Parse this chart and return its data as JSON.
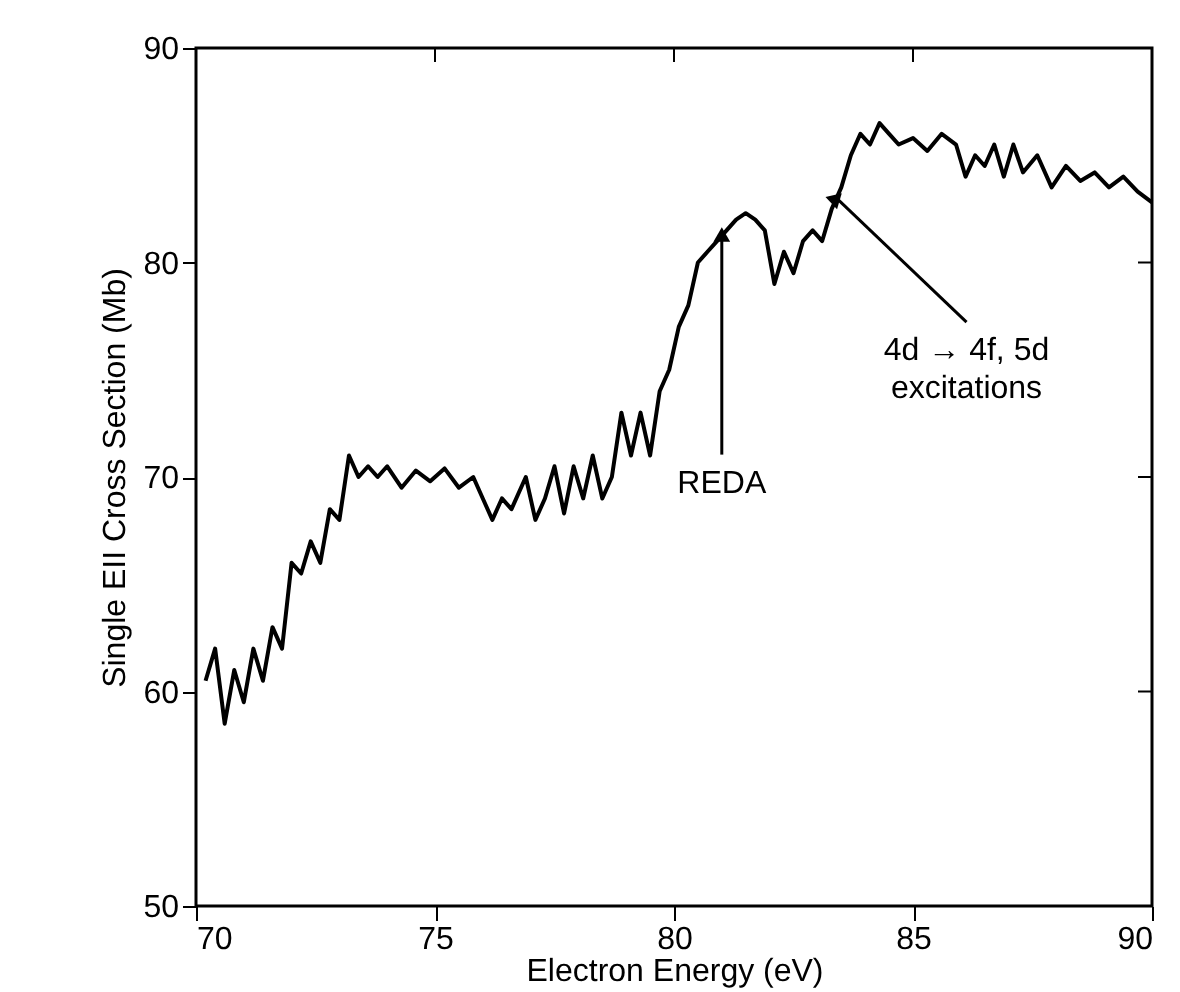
{
  "chart_data": {
    "type": "line",
    "xlabel": "Electron Energy (eV)",
    "ylabel": "Single EII Cross Section (Mb)",
    "x": [
      70.2,
      70.4,
      70.6,
      70.8,
      71.0,
      71.2,
      71.4,
      71.6,
      71.8,
      72.0,
      72.2,
      72.4,
      72.6,
      72.8,
      73.0,
      73.2,
      73.4,
      73.6,
      73.8,
      74.0,
      74.3,
      74.6,
      74.9,
      75.2,
      75.5,
      75.8,
      76.0,
      76.2,
      76.4,
      76.6,
      76.9,
      77.1,
      77.3,
      77.5,
      77.7,
      77.9,
      78.1,
      78.3,
      78.5,
      78.7,
      78.9,
      79.1,
      79.3,
      79.5,
      79.7,
      79.9,
      80.1,
      80.3,
      80.5,
      80.7,
      80.9,
      81.1,
      81.3,
      81.5,
      81.7,
      81.9,
      82.1,
      82.3,
      82.5,
      82.7,
      82.9,
      83.1,
      83.3,
      83.5,
      83.7,
      83.9,
      84.1,
      84.3,
      84.5,
      84.7,
      85.0,
      85.3,
      85.6,
      85.9,
      86.1,
      86.3,
      86.5,
      86.7,
      86.9,
      87.1,
      87.3,
      87.6,
      87.9,
      88.2,
      88.5,
      88.8,
      89.1,
      89.4,
      89.7,
      90.0
    ],
    "series": [
      {
        "color": "#000000",
        "values": [
          60.5,
          62,
          58.5,
          61,
          59.5,
          62,
          60.5,
          63,
          62,
          66,
          65.5,
          67,
          66,
          68.5,
          68,
          71,
          70,
          70.5,
          70,
          70.5,
          69.5,
          70.3,
          69.8,
          70.4,
          69.5,
          70,
          69,
          68,
          69,
          68.5,
          70,
          68,
          69,
          70.5,
          68.3,
          70.5,
          69,
          71,
          69,
          70,
          73,
          71,
          73,
          71,
          74,
          75,
          77,
          78,
          80,
          80.5,
          81,
          81.5,
          82,
          82.3,
          82,
          81.5,
          79,
          80.5,
          79.5,
          81,
          81.5,
          81,
          82.5,
          83.5,
          85,
          86,
          85.5,
          86.5,
          86,
          85.5,
          85.8,
          85.2,
          86,
          85.5,
          84,
          85,
          84.5,
          85.5,
          84,
          85.5,
          84.2,
          85,
          83.5,
          84.5,
          83.8,
          84.2,
          83.5,
          84,
          83.3,
          82.8
        ]
      }
    ],
    "xlim": [
      70,
      90
    ],
    "xticks": [
      70,
      75,
      80,
      85,
      90
    ],
    "ylim": [
      50,
      90
    ],
    "yticks": [
      50,
      60,
      70,
      80,
      90
    ],
    "annotations": [
      {
        "text": "REDA",
        "x": 81.0,
        "y": 81.3
      },
      {
        "text": "4d → 4f, 5d\nexcitations",
        "x": 83.4,
        "y": 83.0
      }
    ],
    "grid": false,
    "marker": "none",
    "line_style": "solid"
  }
}
